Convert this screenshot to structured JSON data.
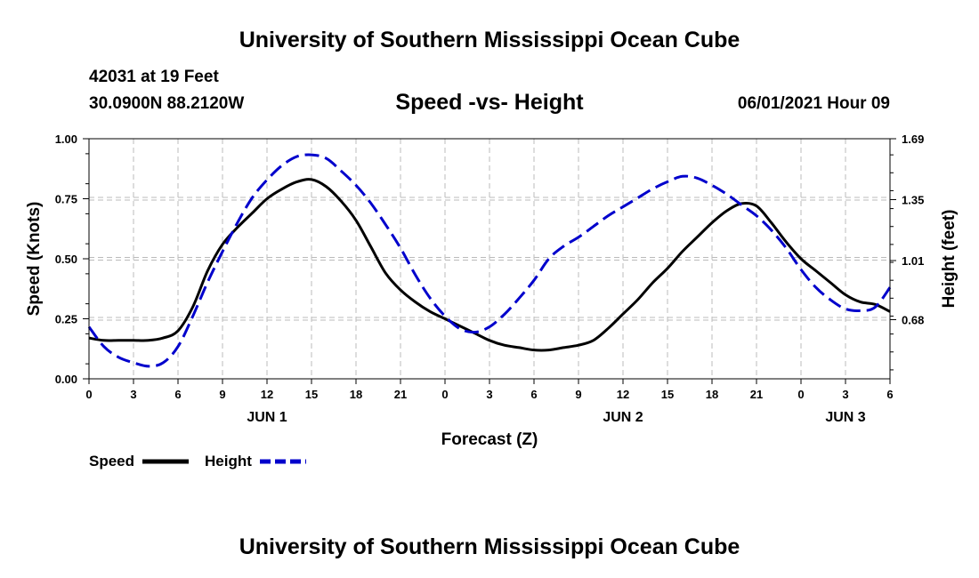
{
  "header": {
    "title_top": "University of Southern Mississippi Ocean Cube",
    "title_bottom": "University of Southern Mississippi Ocean Cube",
    "station": "42031 at 19 Feet",
    "coords": "30.0900N  88.2120W",
    "date": "06/01/2021 Hour 09"
  },
  "chart_data": {
    "type": "line",
    "title": "Speed -vs- Height",
    "xlabel": "Forecast (Z)",
    "ylabel": "Speed (Knots)",
    "ylabel_right": "Height (feet)",
    "x_range_hours": [
      0,
      54
    ],
    "ylim": [
      0,
      1
    ],
    "ylim_right": [
      0.35,
      1.69
    ],
    "yticks": [
      "0.00",
      "0.25",
      "0.50",
      "0.75",
      "1.00"
    ],
    "yticks_right": [
      "0.68",
      "1.01",
      "1.35",
      "1.69"
    ],
    "xticks": [
      "0",
      "3",
      "6",
      "9",
      "12",
      "15",
      "18",
      "21",
      "0",
      "3",
      "6",
      "9",
      "12",
      "15",
      "18",
      "21",
      "0",
      "3",
      "6"
    ],
    "day_labels": [
      {
        "label": "JUN 1",
        "hour": 12
      },
      {
        "label": "JUN 2",
        "hour": 36
      },
      {
        "label": "JUN 3",
        "hour": 51
      }
    ],
    "grid": true,
    "legend": {
      "speed": "Speed",
      "height": "Height"
    },
    "series": [
      {
        "name": "Speed",
        "color": "#000000",
        "style": "solid",
        "axis": "left",
        "x": [
          0,
          1,
          2,
          3,
          4,
          5,
          6,
          7,
          8,
          9,
          10,
          11,
          12,
          13,
          14,
          15,
          16,
          17,
          18,
          19,
          20,
          21,
          22,
          23,
          24,
          25,
          26,
          27,
          28,
          29,
          30,
          31,
          32,
          33,
          34,
          35,
          36,
          37,
          38,
          39,
          40,
          41,
          42,
          43,
          44,
          45,
          46,
          47,
          48,
          49,
          50,
          51,
          52,
          53,
          54
        ],
        "values": [
          0.17,
          0.16,
          0.16,
          0.16,
          0.16,
          0.17,
          0.2,
          0.3,
          0.45,
          0.56,
          0.63,
          0.69,
          0.75,
          0.79,
          0.82,
          0.83,
          0.8,
          0.74,
          0.66,
          0.55,
          0.44,
          0.37,
          0.32,
          0.28,
          0.25,
          0.22,
          0.19,
          0.16,
          0.14,
          0.13,
          0.12,
          0.12,
          0.13,
          0.14,
          0.16,
          0.21,
          0.27,
          0.33,
          0.4,
          0.46,
          0.53,
          0.59,
          0.65,
          0.7,
          0.73,
          0.72,
          0.65,
          0.57,
          0.5,
          0.45,
          0.4,
          0.35,
          0.32,
          0.31,
          0.28
        ]
      },
      {
        "name": "Height",
        "color": "#0000cc",
        "style": "dashed",
        "axis": "right",
        "x": [
          0,
          1,
          2,
          3,
          4,
          5,
          6,
          7,
          8,
          9,
          10,
          11,
          12,
          13,
          14,
          15,
          16,
          17,
          18,
          19,
          20,
          21,
          22,
          23,
          24,
          25,
          26,
          27,
          28,
          29,
          30,
          31,
          32,
          33,
          34,
          35,
          36,
          37,
          38,
          39,
          40,
          41,
          42,
          43,
          44,
          45,
          46,
          47,
          48,
          49,
          50,
          51,
          52,
          53,
          54
        ],
        "values": [
          0.64,
          0.53,
          0.47,
          0.44,
          0.42,
          0.44,
          0.53,
          0.7,
          0.89,
          1.06,
          1.22,
          1.36,
          1.46,
          1.54,
          1.59,
          1.6,
          1.58,
          1.51,
          1.43,
          1.33,
          1.21,
          1.08,
          0.93,
          0.8,
          0.7,
          0.63,
          0.61,
          0.64,
          0.71,
          0.8,
          0.9,
          1.02,
          1.09,
          1.14,
          1.2,
          1.26,
          1.31,
          1.36,
          1.41,
          1.45,
          1.48,
          1.47,
          1.43,
          1.38,
          1.32,
          1.26,
          1.18,
          1.08,
          0.96,
          0.86,
          0.79,
          0.74,
          0.73,
          0.75,
          0.86
        ]
      }
    ]
  }
}
